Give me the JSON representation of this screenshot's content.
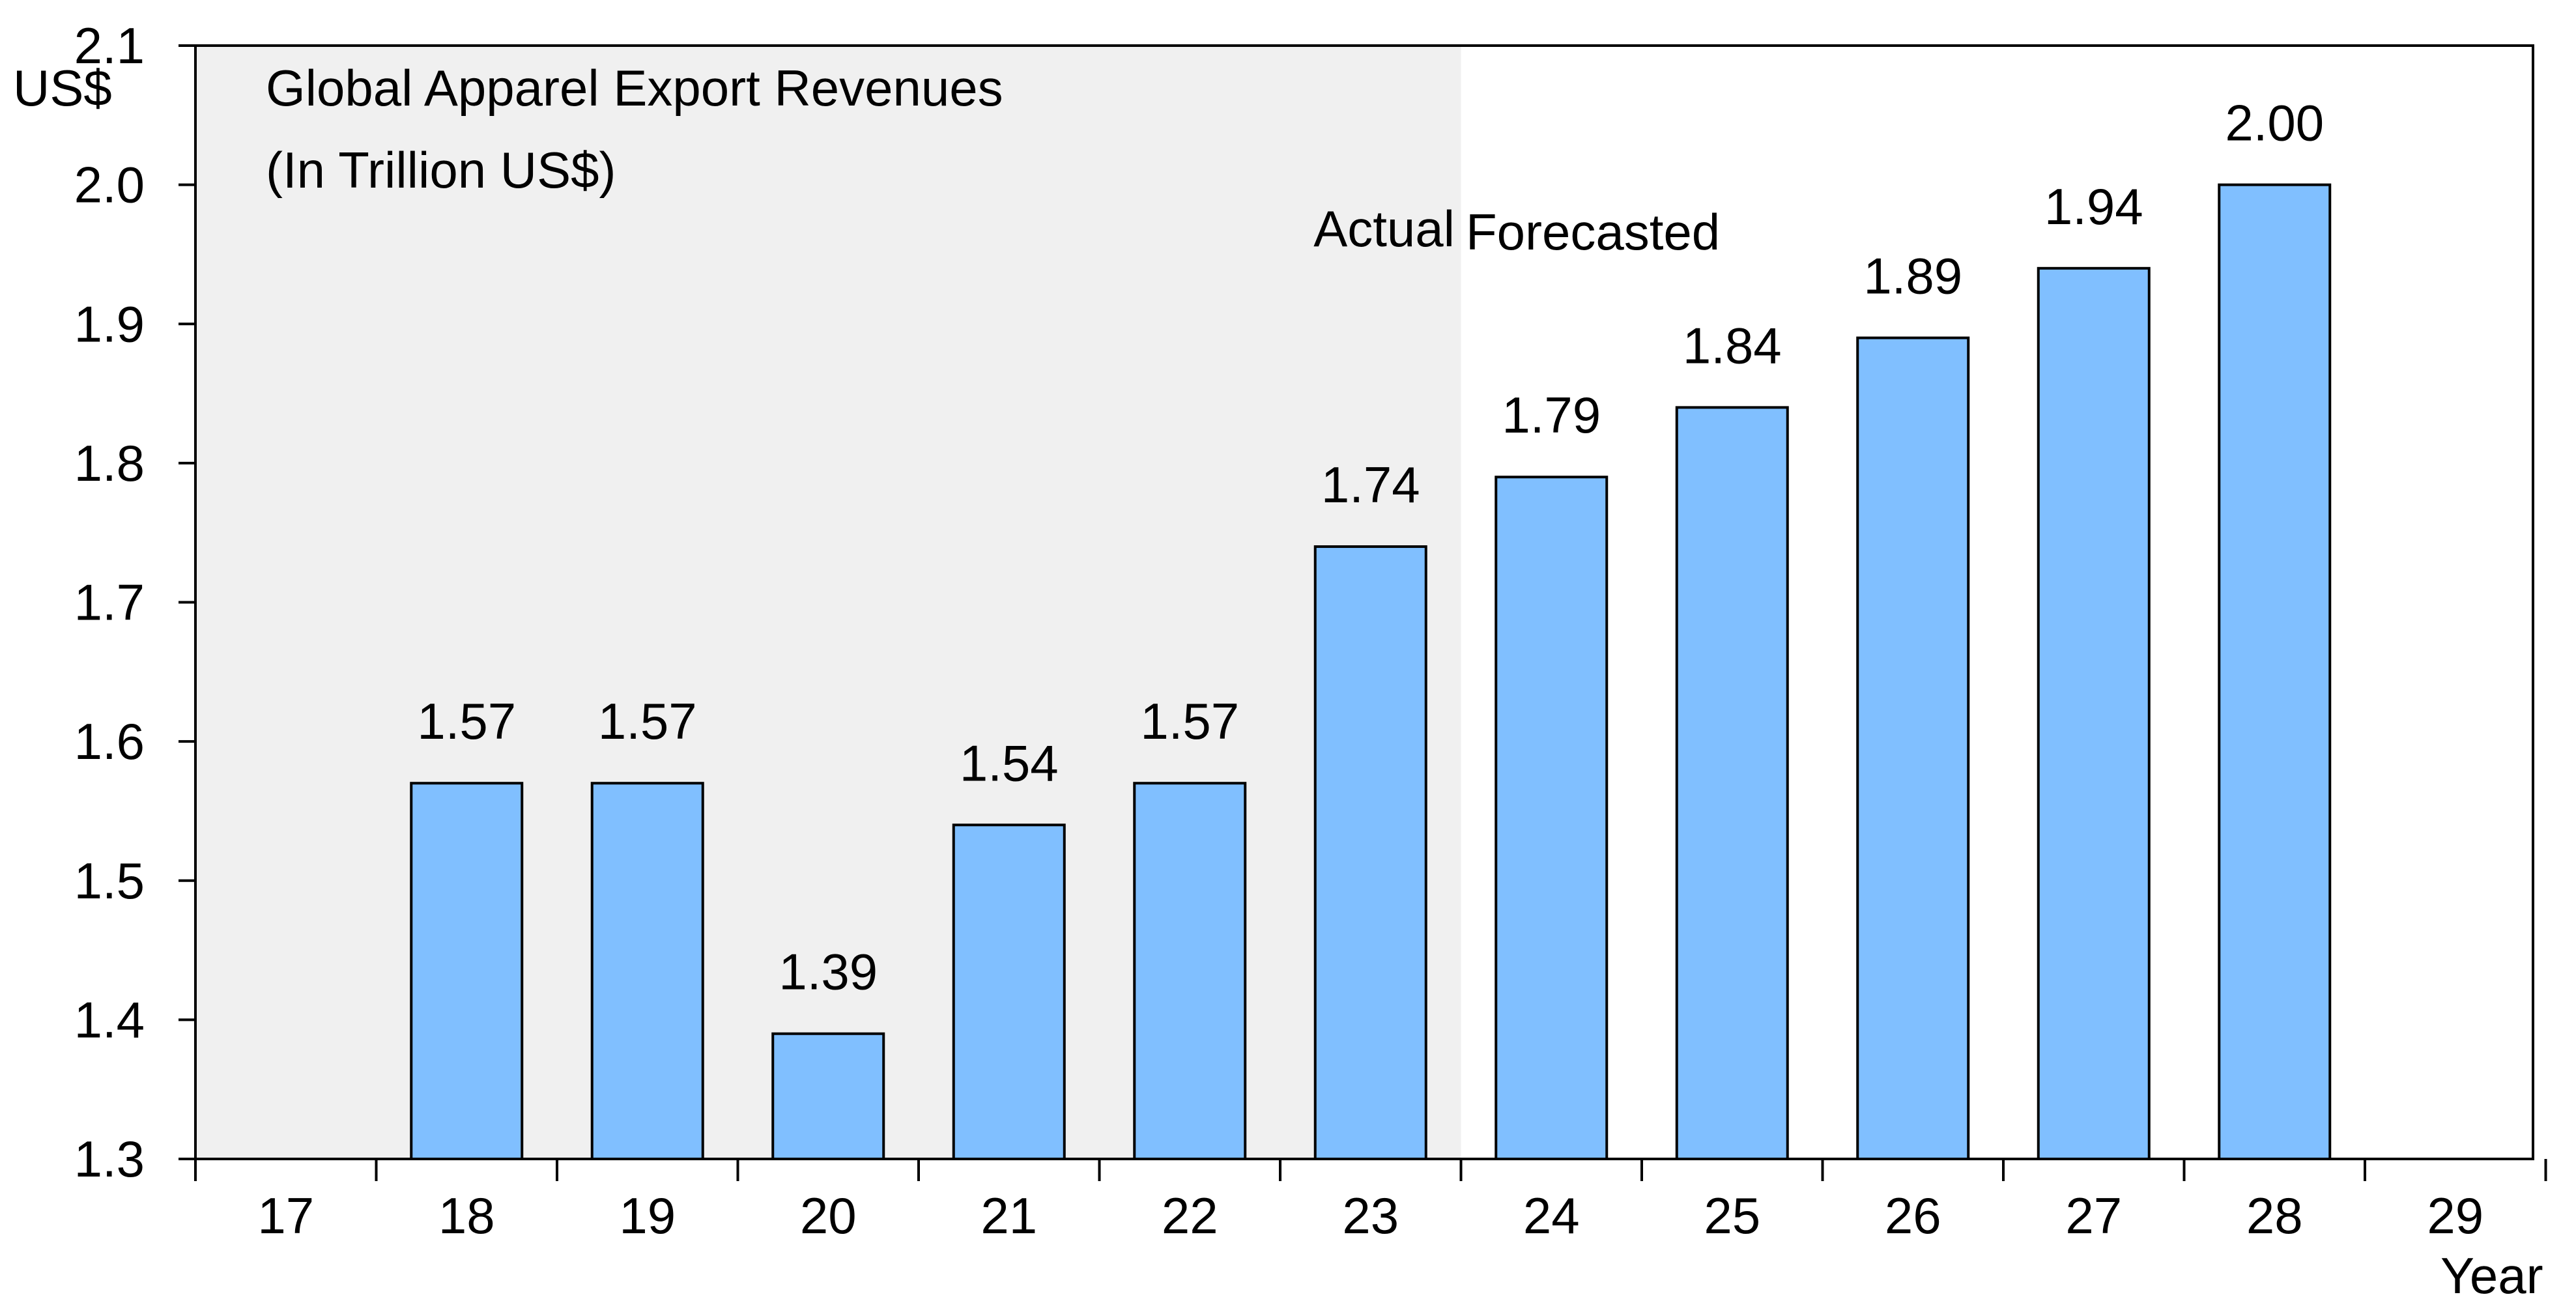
{
  "chart_data": {
    "type": "bar",
    "title": "Global Apparel Export Revenues",
    "subtitle": "(In Trillion US$)",
    "ylabel": "US$",
    "xlabel": "Year",
    "categories": [
      "17",
      "18",
      "19",
      "20",
      "21",
      "22",
      "23",
      "24",
      "25",
      "26",
      "27",
      "28",
      "29"
    ],
    "values": [
      null,
      1.57,
      1.57,
      1.39,
      1.54,
      1.57,
      1.74,
      1.79,
      1.84,
      1.89,
      1.94,
      2.0,
      null
    ],
    "data_labels": [
      "",
      "1.57",
      "1.57",
      "1.39",
      "1.54",
      "1.57",
      "1.74",
      "1.79",
      "1.84",
      "1.89",
      "1.94",
      "2.00",
      ""
    ],
    "ylim": [
      1.3,
      2.1
    ],
    "y_ticks": [
      "1.3",
      "1.4",
      "1.5",
      "1.6",
      "1.7",
      "1.8",
      "1.9",
      "2.0",
      "2.1"
    ],
    "regions": [
      {
        "label": "Actual",
        "from_category": "17",
        "to_category": "23"
      },
      {
        "label": "Forecasted",
        "from_category": "24",
        "to_category": "29"
      }
    ],
    "grid": false,
    "colors": {
      "bar_fill": "#80BFFF",
      "bar_stroke": "#000000",
      "actual_shade": "#F0F0F0",
      "axis": "#000000"
    }
  }
}
